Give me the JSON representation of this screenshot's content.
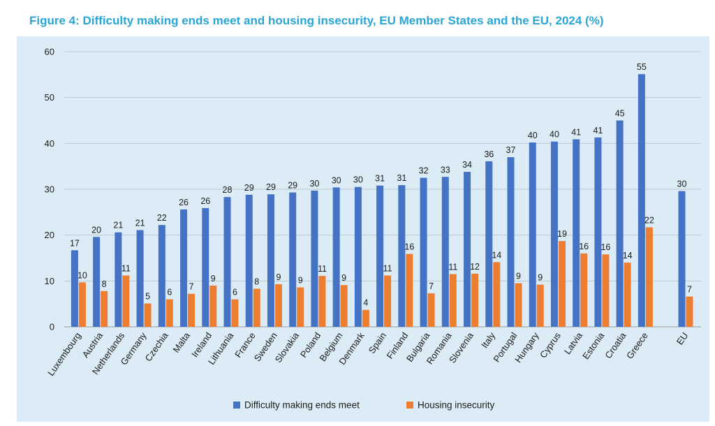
{
  "title": "Figure 4: Difficulty making ends meet and housing insecurity, EU Member States and the EU, 2024 (%)",
  "colors": {
    "series_1": "#4472c4",
    "series_2": "#ed7d31",
    "title": "#2aa6d6",
    "panel_background": "#dcecf6"
  },
  "chart_data": {
    "type": "bar",
    "categories": [
      "Luxembourg",
      "Austria",
      "Netherlands",
      "Germany",
      "Czechia",
      "Malta",
      "Ireland",
      "Lithuania",
      "France",
      "Sweden",
      "Slovakia",
      "Poland",
      "Belgium",
      "Denmark",
      "Spain",
      "Finland",
      "Bulgaria",
      "Romania",
      "Slovenia",
      "Italy",
      "Portugal",
      "Hungary",
      "Cyprus",
      "Latvia",
      "Estonia",
      "Croatia",
      "Greece",
      "EU"
    ],
    "series": [
      {
        "name": "Difficulty making ends meet",
        "values": [
          16.7,
          19.6,
          20.6,
          21.1,
          22.2,
          25.6,
          25.9,
          28.3,
          28.8,
          28.9,
          29.3,
          29.7,
          30.4,
          30.5,
          30.8,
          30.9,
          32.5,
          32.7,
          33.8,
          36.1,
          37.0,
          40.2,
          40.4,
          40.9,
          41.3,
          45.0,
          55.1,
          29.6
        ],
        "labels": [
          "17",
          "20",
          "21",
          "21",
          "22",
          "26",
          "26",
          "28",
          "29",
          "29",
          "29",
          "30",
          "30",
          "30",
          "31",
          "31",
          "32",
          "33",
          "34",
          "36",
          "37",
          "40",
          "40",
          "41",
          "41",
          "45",
          "55",
          "30"
        ]
      },
      {
        "name": "Housing insecurity",
        "values": [
          9.7,
          7.8,
          11.2,
          5.1,
          6.0,
          7.2,
          9.0,
          6.0,
          8.3,
          9.3,
          8.6,
          11.1,
          9.1,
          3.7,
          11.2,
          15.9,
          7.3,
          11.5,
          11.6,
          14.1,
          9.5,
          9.2,
          18.7,
          16.0,
          15.8,
          14.0,
          21.7,
          6.6
        ],
        "labels": [
          "10",
          "8",
          "11",
          "5",
          "6",
          "7",
          "9",
          "6",
          "8",
          "9",
          "9",
          "11",
          "9",
          "4",
          "11",
          "16",
          "7",
          "11",
          "12",
          "14",
          "9",
          "9",
          "19",
          "16",
          "16",
          "14",
          "22",
          "7"
        ]
      }
    ],
    "ylim": [
      0,
      60
    ],
    "yticks": [
      "0",
      "10",
      "20",
      "30",
      "40",
      "50",
      "60"
    ],
    "grid": "horizontal",
    "legend": "bottom"
  }
}
